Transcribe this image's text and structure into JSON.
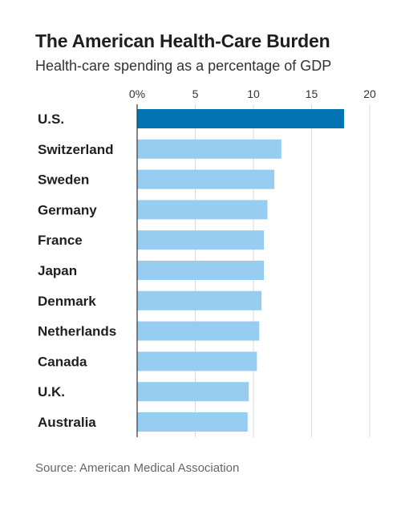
{
  "header": {
    "title": "The American Health-Care Burden",
    "subtitle": "Health-care spending as a percentage of GDP"
  },
  "footer": {
    "source": "Source: American Medical Association"
  },
  "chart_data": {
    "type": "bar",
    "orientation": "horizontal",
    "title": "The American Health-Care Burden",
    "subtitle": "Health-care spending as a percentage of GDP",
    "categories": [
      "U.S.",
      "Switzerland",
      "Sweden",
      "Germany",
      "France",
      "Japan",
      "Denmark",
      "Netherlands",
      "Canada",
      "U.K.",
      "Australia"
    ],
    "values": [
      17.8,
      12.4,
      11.8,
      11.2,
      10.9,
      10.9,
      10.7,
      10.5,
      10.3,
      9.6,
      9.5
    ],
    "xlim": [
      0,
      20
    ],
    "ticks": [
      0,
      5,
      10,
      15,
      20
    ],
    "tick_labels": [
      "0%",
      "5",
      "10",
      "15",
      "20"
    ],
    "grid": true,
    "highlight_color": "#0274b3",
    "bar_color": "#96cdf0",
    "grid_color": "#d9d9d9"
  }
}
